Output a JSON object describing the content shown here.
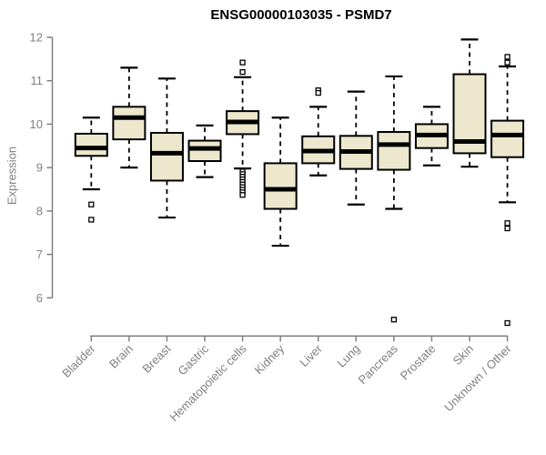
{
  "chart_data": {
    "type": "boxplot",
    "title": "ENSG00000103035 - PSMD7",
    "ylabel": "Expression",
    "xlabel": "",
    "ylim": [
      6,
      12
    ],
    "yticks": [
      6,
      7,
      8,
      9,
      10,
      11,
      12
    ],
    "grid": false,
    "legend": "none",
    "box_fill": "#EDE8CD",
    "box_stroke": "#000000",
    "axis_color": "#808080",
    "label_color": "#808080",
    "title_color": "#000000",
    "categories": [
      "Bladder",
      "Brain",
      "Breast",
      "Gastric",
      "Hematopoietic cells",
      "Kidney",
      "Liver",
      "Lung",
      "Pancreas",
      "Prostate",
      "Skin",
      "Unknown / Other"
    ],
    "boxes": [
      {
        "category": "Bladder",
        "whisker_low": 8.5,
        "q1": 9.27,
        "median": 9.45,
        "q3": 9.78,
        "whisker_high": 10.15,
        "outliers": [
          8.15,
          7.8
        ]
      },
      {
        "category": "Brain",
        "whisker_low": 9.0,
        "q1": 9.65,
        "median": 10.15,
        "q3": 10.4,
        "whisker_high": 11.3,
        "outliers": []
      },
      {
        "category": "Breast",
        "whisker_low": 7.85,
        "q1": 8.7,
        "median": 9.33,
        "q3": 9.8,
        "whisker_high": 11.05,
        "outliers": []
      },
      {
        "category": "Gastric",
        "whisker_low": 8.78,
        "q1": 9.15,
        "median": 9.44,
        "q3": 9.62,
        "whisker_high": 9.97,
        "outliers": []
      },
      {
        "category": "Hematopoietic cells",
        "whisker_low": 8.98,
        "q1": 9.77,
        "median": 10.05,
        "q3": 10.3,
        "whisker_high": 11.08,
        "outliers": [
          11.42,
          11.2,
          8.91,
          8.85,
          8.79,
          8.73,
          8.67,
          8.61,
          8.55,
          8.49,
          8.43,
          8.37
        ]
      },
      {
        "category": "Kidney",
        "whisker_low": 7.2,
        "q1": 8.05,
        "median": 8.5,
        "q3": 9.1,
        "whisker_high": 10.15,
        "outliers": []
      },
      {
        "category": "Liver",
        "whisker_low": 8.82,
        "q1": 9.1,
        "median": 9.38,
        "q3": 9.72,
        "whisker_high": 10.4,
        "outliers": [
          10.78,
          10.72
        ]
      },
      {
        "category": "Lung",
        "whisker_low": 8.15,
        "q1": 8.97,
        "median": 9.37,
        "q3": 9.73,
        "whisker_high": 10.75,
        "outliers": []
      },
      {
        "category": "Pancreas",
        "whisker_low": 8.05,
        "q1": 8.95,
        "median": 9.53,
        "q3": 9.82,
        "whisker_high": 11.1,
        "outliers": [
          5.5
        ]
      },
      {
        "category": "Prostate",
        "whisker_low": 9.05,
        "q1": 9.45,
        "median": 9.75,
        "q3": 10.0,
        "whisker_high": 10.4,
        "outliers": []
      },
      {
        "category": "Skin",
        "whisker_low": 9.02,
        "q1": 9.33,
        "median": 9.6,
        "q3": 11.15,
        "whisker_high": 11.95,
        "outliers": []
      },
      {
        "category": "Unknown / Other",
        "whisker_low": 8.2,
        "q1": 9.24,
        "median": 9.75,
        "q3": 10.08,
        "whisker_high": 11.33,
        "outliers": [
          11.55,
          11.42,
          7.72,
          7.6,
          5.42
        ]
      }
    ]
  }
}
